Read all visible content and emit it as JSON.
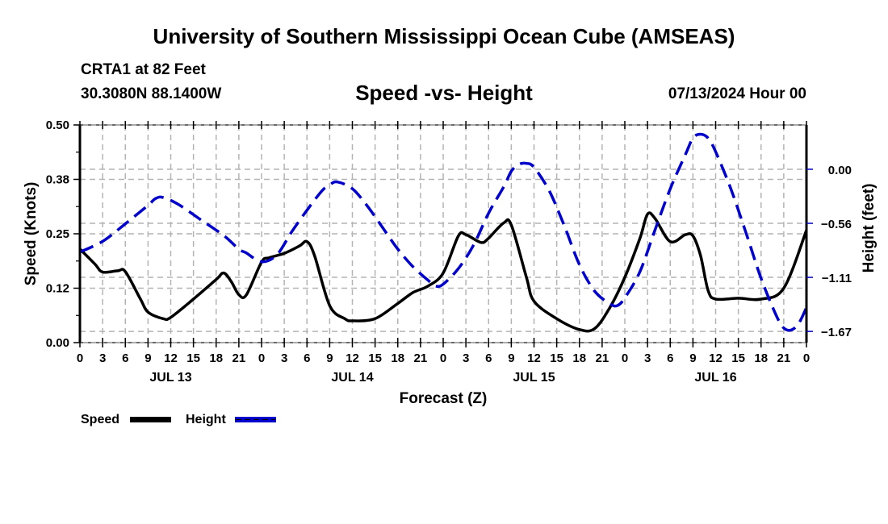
{
  "header": {
    "title": "University of Southern Mississippi Ocean Cube (AMSEAS)",
    "station": "CRTA1 at 82 Feet",
    "coordinates": "30.3080N  88.1400W",
    "subtitle": "Speed -vs- Height",
    "datestamp": "07/13/2024 Hour 00"
  },
  "footer": {
    "title": "University of Southern Mississippi Ocean Cube (AMSEAS)"
  },
  "chart_data": {
    "type": "line",
    "title": "Speed -vs- Height",
    "xlabel": "Forecast (Z)",
    "ylabel": "Speed (Knots)",
    "y2label": "Height (feet)",
    "x_unit": "hours since 07/13/2024 00Z",
    "xlim": [
      0,
      96
    ],
    "ylim": [
      0,
      0.5
    ],
    "y2lim": [
      -1.78,
      0.455
    ],
    "grid": true,
    "x_ticks": [
      0,
      3,
      6,
      9,
      12,
      15,
      18,
      21,
      24,
      27,
      30,
      33,
      36,
      39,
      42,
      45,
      48,
      51,
      54,
      57,
      60,
      63,
      66,
      69,
      72,
      75,
      78,
      81,
      84,
      87,
      90,
      93,
      96
    ],
    "x_tick_labels": [
      "0",
      "3",
      "6",
      "9",
      "12",
      "15",
      "18",
      "21",
      "0",
      "3",
      "6",
      "9",
      "12",
      "15",
      "18",
      "21",
      "0",
      "3",
      "6",
      "9",
      "12",
      "15",
      "18",
      "21",
      "0",
      "3",
      "6",
      "9",
      "12",
      "15",
      "18",
      "21",
      "0"
    ],
    "day_labels": [
      {
        "label": "JUL 13",
        "hour": 12
      },
      {
        "label": "JUL 14",
        "hour": 36
      },
      {
        "label": "JUL 15",
        "hour": 60
      },
      {
        "label": "JUL 16",
        "hour": 84
      }
    ],
    "y_ticks": [
      0.0,
      0.125,
      0.25,
      0.375,
      0.5
    ],
    "y_tick_labels": [
      "0.00",
      "0.12",
      "0.25",
      "0.38",
      "0.50"
    ],
    "y2_ticks": [
      0.0,
      -0.555,
      -1.11,
      -1.665
    ],
    "y2_tick_labels": [
      "0.00",
      "−0.56",
      "−1.11",
      "−1.67"
    ],
    "legend": {
      "placement": "bottom-left"
    },
    "series": [
      {
        "name": "Speed",
        "axis": "left",
        "color": "#000000",
        "style": "solid",
        "x": [
          0,
          2,
          3,
          5,
          6,
          8,
          9,
          11,
          12,
          15,
          18,
          19,
          20,
          21,
          22,
          24,
          25,
          27,
          29,
          30,
          31,
          33,
          35,
          36,
          39,
          42,
          44,
          46,
          48,
          50,
          51,
          53,
          54,
          56,
          57,
          59,
          60,
          63,
          66,
          68,
          70,
          72,
          74,
          75,
          76,
          78,
          80,
          81,
          82,
          83,
          84,
          87,
          90,
          93,
          96
        ],
        "values": [
          0.215,
          0.18,
          0.162,
          0.165,
          0.163,
          0.1,
          0.07,
          0.055,
          0.058,
          0.1,
          0.145,
          0.16,
          0.14,
          0.11,
          0.11,
          0.185,
          0.195,
          0.205,
          0.222,
          0.232,
          0.2,
          0.085,
          0.055,
          0.05,
          0.055,
          0.09,
          0.115,
          0.13,
          0.16,
          0.245,
          0.248,
          0.23,
          0.24,
          0.275,
          0.27,
          0.15,
          0.095,
          0.055,
          0.03,
          0.032,
          0.08,
          0.15,
          0.24,
          0.295,
          0.285,
          0.232,
          0.248,
          0.245,
          0.2,
          0.12,
          0.1,
          0.102,
          0.1,
          0.125,
          0.258
        ]
      },
      {
        "name": "Height",
        "axis": "right",
        "color": "#0000cc",
        "style": "dashed",
        "x": [
          0,
          3,
          6,
          9,
          10,
          11,
          13,
          16,
          19,
          21,
          22,
          24,
          26,
          28,
          30,
          32,
          33,
          34,
          36,
          38,
          40,
          42,
          44,
          46,
          47,
          48,
          50,
          52,
          54,
          56,
          57,
          58,
          59,
          60,
          62,
          64,
          66,
          68,
          70,
          71,
          72,
          74,
          76,
          78,
          80,
          81,
          82,
          83,
          84,
          86,
          88,
          90,
          92,
          93,
          94,
          95,
          96
        ],
        "values": [
          -0.85,
          -0.74,
          -0.56,
          -0.37,
          -0.3,
          -0.29,
          -0.36,
          -0.52,
          -0.68,
          -0.82,
          -0.86,
          -0.95,
          -0.88,
          -0.64,
          -0.42,
          -0.22,
          -0.16,
          -0.13,
          -0.2,
          -0.38,
          -0.6,
          -0.82,
          -1.0,
          -1.14,
          -1.2,
          -1.18,
          -1.02,
          -0.78,
          -0.45,
          -0.18,
          -0.02,
          0.05,
          0.06,
          0.02,
          -0.22,
          -0.58,
          -0.98,
          -1.25,
          -1.38,
          -1.4,
          -1.32,
          -1.05,
          -0.62,
          -0.2,
          0.15,
          0.32,
          0.36,
          0.32,
          0.18,
          -0.2,
          -0.65,
          -1.12,
          -1.5,
          -1.63,
          -1.65,
          -1.58,
          -1.42
        ]
      }
    ]
  }
}
